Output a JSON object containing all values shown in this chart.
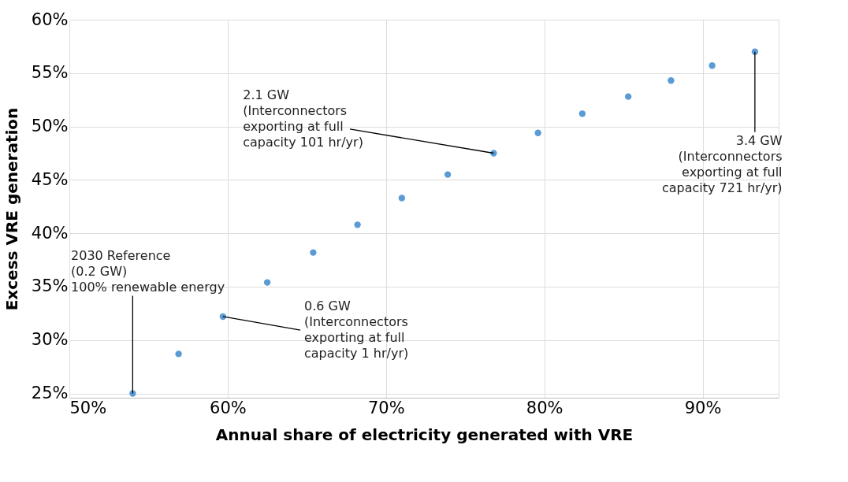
{
  "chart_data": {
    "type": "scatter",
    "xlabel": "Annual share of electricity generated with VRE",
    "ylabel": "Excess VRE generation",
    "x": [
      54.0,
      56.9,
      59.7,
      62.5,
      65.4,
      68.2,
      71.0,
      73.9,
      76.8,
      79.6,
      82.4,
      85.3,
      88.0,
      90.6,
      93.3
    ],
    "series": [
      {
        "color": "#5b9bd5",
        "values": [
          25.0,
          28.7,
          32.2,
          35.4,
          38.2,
          40.8,
          43.3,
          45.5,
          47.5,
          49.4,
          51.2,
          52.8,
          54.3,
          55.7,
          57.0
        ]
      }
    ],
    "xlim": [
      50,
      94.8
    ],
    "ylim": [
      24.6,
      60
    ],
    "xticks": [
      {
        "value": 50,
        "label": "50%"
      },
      {
        "value": 60,
        "label": "60%"
      },
      {
        "value": 70,
        "label": "70%"
      },
      {
        "value": 80,
        "label": "80%"
      },
      {
        "value": 90,
        "label": "90%"
      }
    ],
    "yticks": [
      {
        "value": 25,
        "label": "25%"
      },
      {
        "value": 30,
        "label": "30%"
      },
      {
        "value": 35,
        "label": "35%"
      },
      {
        "value": 40,
        "label": "40%"
      },
      {
        "value": 45,
        "label": "45%"
      },
      {
        "value": 50,
        "label": "50%"
      },
      {
        "value": 55,
        "label": "55%"
      },
      {
        "value": 60,
        "label": "60%"
      }
    ],
    "grid": true,
    "marker": "circle",
    "annotations": [
      {
        "text": "2030 Reference\n(0.2 GW)\n100% renewable energy",
        "x": 54.0,
        "y": 25.0
      },
      {
        "text": "0.6 GW\n(Interconnectors\nexporting at full\ncapacity 1 hr/yr)",
        "x": 59.7,
        "y": 32.2
      },
      {
        "text": "2.1 GW\n(Interconnectors\nexporting at full\ncapacity 101 hr/yr)",
        "x": 76.8,
        "y": 47.5
      },
      {
        "text": "3.4 GW\n(Interconnectors\nexporting at full\ncapacity 721 hr/yr)",
        "x": 93.3,
        "y": 57.0
      }
    ]
  }
}
